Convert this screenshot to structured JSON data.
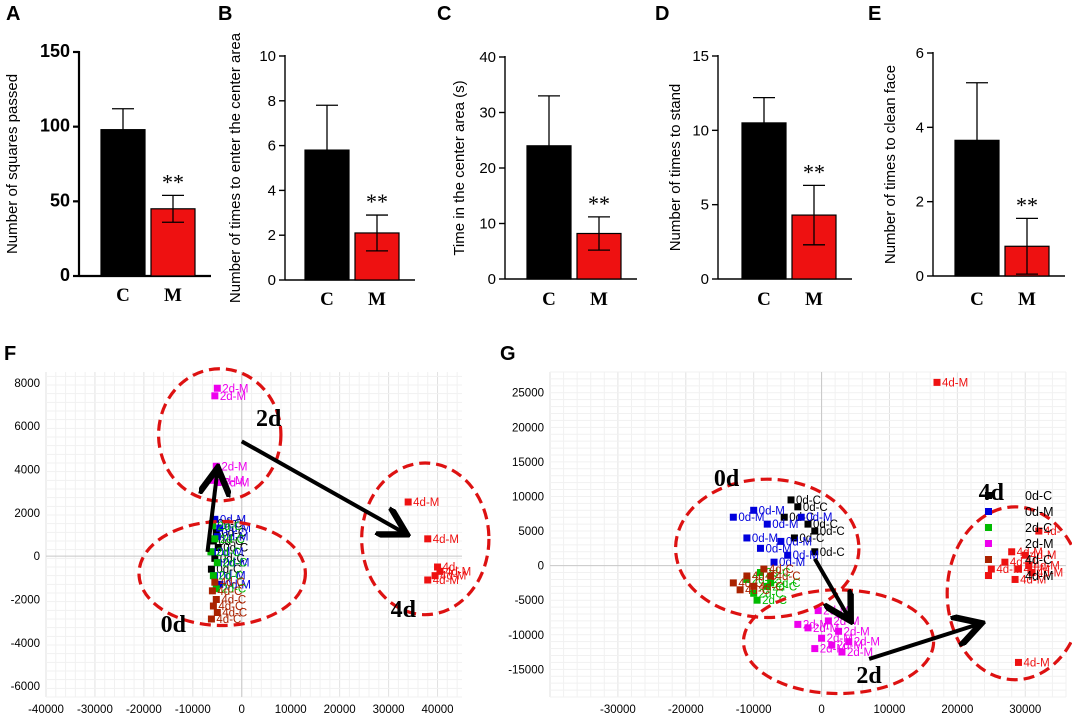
{
  "bar_panels": [
    {
      "letter": "A",
      "ylabel": "Number of squares passed",
      "ylim": [
        0,
        150
      ],
      "ticks": [
        "0",
        "50",
        "100",
        "150"
      ],
      "tick_vals": [
        0,
        50,
        100,
        150
      ],
      "bold_ticks": true,
      "categories": [
        "C",
        "M"
      ],
      "values": [
        98,
        45
      ],
      "errors": [
        14,
        9
      ],
      "sig": "**"
    },
    {
      "letter": "B",
      "ylabel": "Number of times to enter the center area",
      "ylim": [
        0,
        10
      ],
      "ticks": [
        "0",
        "2",
        "4",
        "6",
        "8",
        "10"
      ],
      "tick_vals": [
        0,
        2,
        4,
        6,
        8,
        10
      ],
      "bold_ticks": false,
      "categories": [
        "C",
        "M"
      ],
      "values": [
        5.8,
        2.1
      ],
      "errors": [
        2.0,
        0.8
      ],
      "sig": "**"
    },
    {
      "letter": "C",
      "ylabel": "Time in the center area (s)",
      "ylim": [
        0,
        40
      ],
      "ticks": [
        "0",
        "10",
        "20",
        "30",
        "40"
      ],
      "tick_vals": [
        0,
        10,
        20,
        30,
        40
      ],
      "bold_ticks": false,
      "categories": [
        "C",
        "M"
      ],
      "values": [
        24,
        8.2
      ],
      "errors": [
        9,
        3
      ],
      "sig": "**"
    },
    {
      "letter": "D",
      "ylabel": "Number of times to stand",
      "ylim": [
        0,
        15
      ],
      "ticks": [
        "0",
        "5",
        "10",
        "15"
      ],
      "tick_vals": [
        0,
        5,
        10,
        15
      ],
      "bold_ticks": false,
      "categories": [
        "C",
        "M"
      ],
      "values": [
        10.5,
        4.3
      ],
      "errors": [
        1.7,
        2.0
      ],
      "sig": "**"
    },
    {
      "letter": "E",
      "ylabel": "Number of times to clean face",
      "ylim": [
        0,
        6
      ],
      "ticks": [
        "0",
        "2",
        "4",
        "6"
      ],
      "tick_vals": [
        0,
        2,
        4,
        6
      ],
      "bold_ticks": false,
      "categories": [
        "C",
        "M"
      ],
      "values": [
        3.65,
        0.8
      ],
      "errors": [
        1.55,
        0.75
      ],
      "sig": "**"
    }
  ],
  "pca_panels": [
    {
      "letter": "F",
      "xlim": [
        -40000,
        45000
      ],
      "ylim": [
        -6500,
        8500
      ],
      "xticks": [
        -40000,
        -30000,
        -20000,
        -10000,
        0,
        10000,
        20000,
        30000,
        40000
      ],
      "yticks": [
        -6000,
        -4000,
        -2000,
        0,
        2000,
        4000,
        6000,
        8000
      ],
      "group_labels": [
        {
          "text": "2d",
          "x": 5500,
          "y": 6000
        },
        {
          "text": "0d",
          "x": -14000,
          "y": -3500
        },
        {
          "text": "4d",
          "x": 33000,
          "y": -2800
        }
      ]
    },
    {
      "letter": "G",
      "xlim": [
        -40000,
        36000
      ],
      "ylim": [
        -19000,
        28000
      ],
      "xticks": [
        -30000,
        -20000,
        -10000,
        0,
        10000,
        20000,
        30000
      ],
      "yticks": [
        -15000,
        -10000,
        -5000,
        0,
        5000,
        10000,
        15000,
        20000,
        25000
      ],
      "group_labels": [
        {
          "text": "0d",
          "x": -14000,
          "y": 11500
        },
        {
          "text": "2d",
          "x": 7000,
          "y": -17000
        },
        {
          "text": "4d",
          "x": 25000,
          "y": 9500
        }
      ],
      "legend": [
        "0d-C",
        "0d-M",
        "2d-C",
        "2d-M",
        "4d-C",
        "4d-M"
      ]
    }
  ],
  "colors": {
    "C": "#000000",
    "M": "#ee1111",
    "0d-C": "#000000",
    "0d-M": "#0000dd",
    "2d-C": "#00bb00",
    "2d-M": "#ee00ee",
    "4d-C": "#aa2200",
    "4d-M": "#ee1111",
    "dashed": "#dd1111"
  },
  "chart_data": [
    {
      "type": "bar",
      "panel": "A",
      "categories": [
        "C",
        "M"
      ],
      "values": [
        98,
        45
      ],
      "errors": [
        14,
        9
      ],
      "ylabel": "Number of squares passed",
      "ylim": [
        0,
        150
      ],
      "annotations": [
        "**"
      ]
    },
    {
      "type": "bar",
      "panel": "B",
      "categories": [
        "C",
        "M"
      ],
      "values": [
        5.8,
        2.1
      ],
      "errors": [
        2.0,
        0.8
      ],
      "ylabel": "Number of times to enter the center area",
      "ylim": [
        0,
        10
      ],
      "annotations": [
        "**"
      ]
    },
    {
      "type": "bar",
      "panel": "C",
      "categories": [
        "C",
        "M"
      ],
      "values": [
        24,
        8.2
      ],
      "errors": [
        9,
        3
      ],
      "ylabel": "Time in the center area (s)",
      "ylim": [
        0,
        40
      ],
      "annotations": [
        "**"
      ]
    },
    {
      "type": "bar",
      "panel": "D",
      "categories": [
        "C",
        "M"
      ],
      "values": [
        10.5,
        4.3
      ],
      "errors": [
        1.7,
        2.0
      ],
      "ylabel": "Number of times to stand",
      "ylim": [
        0,
        15
      ],
      "annotations": [
        "**"
      ]
    },
    {
      "type": "bar",
      "panel": "E",
      "categories": [
        "C",
        "M"
      ],
      "values": [
        3.65,
        0.8
      ],
      "errors": [
        1.55,
        0.75
      ],
      "ylabel": "Number of times to clean face",
      "ylim": [
        0,
        6
      ],
      "annotations": [
        "**"
      ]
    },
    {
      "type": "scatter",
      "panel": "F",
      "xlim": [
        -40000,
        45000
      ],
      "ylim": [
        -6500,
        8500
      ],
      "series": [
        {
          "name": "0d-C",
          "points": [
            [
              -6000,
              1500
            ],
            [
              -5200,
              1100
            ],
            [
              -5800,
              700
            ],
            [
              -4800,
              400
            ],
            [
              -5500,
              -100
            ],
            [
              -6200,
              -600
            ]
          ],
          "labels": [
            "0d-C",
            "0d-C",
            "0d-C",
            "0d-C",
            "0d-C",
            "0d-C"
          ]
        },
        {
          "name": "0d-M",
          "points": [
            [
              -5500,
              1700
            ],
            [
              -4500,
              1300
            ],
            [
              -5000,
              900
            ],
            [
              -6000,
              200
            ],
            [
              -4800,
              -300
            ],
            [
              -5600,
              -900
            ],
            [
              -4500,
              -1300
            ]
          ],
          "labels": [
            "0d-M",
            "0d-M",
            "0d-M",
            "0d-M",
            "0d-M",
            "0d-M",
            "0d-M"
          ]
        },
        {
          "name": "2d-C",
          "points": [
            [
              -6000,
              1400
            ],
            [
              -5500,
              800
            ],
            [
              -6300,
              200
            ],
            [
              -5000,
              -300
            ],
            [
              -5800,
              -900
            ],
            [
              -5200,
              -1500
            ]
          ],
          "labels": [
            "2d-C",
            "2d-C",
            "2d-C",
            "2d-C",
            "2d-C",
            "2d-C"
          ]
        },
        {
          "name": "2d-M",
          "points": [
            [
              -5000,
              7750
            ],
            [
              -5500,
              7400
            ],
            [
              -5200,
              4150
            ],
            [
              -5800,
              3500
            ],
            [
              -4800,
              3400
            ]
          ],
          "labels": [
            "2d-M",
            "2d-M",
            "2d-M",
            "2d-M",
            "2d-M"
          ]
        },
        {
          "name": "4d-C",
          "points": [
            [
              -5500,
              -1200
            ],
            [
              -6000,
              -1600
            ],
            [
              -5200,
              -2000
            ],
            [
              -5800,
              -2300
            ],
            [
              -5000,
              -2600
            ],
            [
              -6200,
              -2900
            ]
          ],
          "labels": [
            "4d-C",
            "4d-C",
            "4d-C",
            "4d-C",
            "4d-C",
            "4d-C"
          ]
        },
        {
          "name": "4d-M",
          "points": [
            [
              34000,
              2500
            ],
            [
              38000,
              800
            ],
            [
              40000,
              -500
            ],
            [
              39500,
              -900
            ],
            [
              38000,
              -1100
            ],
            [
              40500,
              -700
            ]
          ],
          "labels": [
            "4d-M",
            "4d-M",
            "4d-",
            "4d-M",
            "4d-M",
            "4d-M"
          ]
        }
      ],
      "ellipses": [
        {
          "group": "2d",
          "cx": -4500,
          "cy": 5600,
          "rx": 12500,
          "ry": 3050
        },
        {
          "group": "0d",
          "cx": -4000,
          "cy": -800,
          "rx": 17000,
          "ry": 2400
        },
        {
          "group": "4d",
          "cx": 37500,
          "cy": 800,
          "rx": 13000,
          "ry": 3500
        }
      ],
      "arrows": [
        {
          "from": [
            -7000,
            200
          ],
          "to": [
            -5000,
            3900
          ]
        },
        {
          "from": [
            0,
            5300
          ],
          "to": [
            33000,
            1100
          ]
        }
      ]
    },
    {
      "type": "scatter",
      "panel": "G",
      "xlim": [
        -40000,
        36000
      ],
      "ylim": [
        -19000,
        28000
      ],
      "series": [
        {
          "name": "0d-C",
          "points": [
            [
              -4500,
              9500
            ],
            [
              -3500,
              8500
            ],
            [
              -5500,
              7000
            ],
            [
              -2000,
              6000
            ],
            [
              -1000,
              5000
            ],
            [
              -4000,
              4000
            ],
            [
              -1000,
              2000
            ]
          ],
          "labels": [
            "0d-C",
            "0d-C",
            "0d-C",
            "0d-C",
            "0d-C",
            "0d-C",
            "0d-C"
          ]
        },
        {
          "name": "0d-M",
          "points": [
            [
              -13000,
              7000
            ],
            [
              -10000,
              8000
            ],
            [
              -8000,
              6000
            ],
            [
              -11000,
              4000
            ],
            [
              -9000,
              2500
            ],
            [
              -6000,
              3500
            ],
            [
              -3000,
              7000
            ],
            [
              -5000,
              1500
            ],
            [
              -7000,
              500
            ]
          ],
          "labels": [
            "0d-M",
            "0d-M",
            "0d-M",
            "0d-M",
            "0d-M",
            "0d-M",
            "0d-M",
            "0d-M",
            "0d-M"
          ]
        },
        {
          "name": "2d-C",
          "points": [
            [
              -9000,
              -1000
            ],
            [
              -11000,
              -2000
            ],
            [
              -8000,
              -3000
            ],
            [
              -10000,
              -4000
            ],
            [
              -7500,
              -2500
            ],
            [
              -9500,
              -5000
            ]
          ],
          "labels": [
            "2d-C",
            "2d-C",
            "2d-C",
            "2d-C",
            "2d-C",
            "2d-C"
          ]
        },
        {
          "name": "2d-M",
          "points": [
            [
              -500,
              -6500
            ],
            [
              1000,
              -8000
            ],
            [
              -2000,
              -9000
            ],
            [
              2500,
              -9500
            ],
            [
              0,
              -10500
            ],
            [
              1500,
              -11500
            ],
            [
              4000,
              -11000
            ],
            [
              -1000,
              -12000
            ],
            [
              3000,
              -12500
            ],
            [
              -3500,
              -8500
            ]
          ],
          "labels": [
            "2d-M",
            "2d-M",
            "2d-M",
            "2d-M",
            "2d-M",
            "2d-M",
            "2d-M",
            "2d-M",
            "2d-M",
            "2d-M"
          ]
        },
        {
          "name": "4d-C",
          "points": [
            [
              -13000,
              -2500
            ],
            [
              -11000,
              -1500
            ],
            [
              -12000,
              -3500
            ],
            [
              -10000,
              -3000
            ],
            [
              -8500,
              -500
            ],
            [
              -7500,
              -1500
            ]
          ],
          "labels": [
            "4d-C",
            "4d-C",
            "4d-C",
            "4d-C",
            "4d-C",
            "4d-C"
          ]
        },
        {
          "name": "4d-M",
          "points": [
            [
              17000,
              26500
            ],
            [
              32000,
              5000
            ],
            [
              28000,
              2000
            ],
            [
              30000,
              1500
            ],
            [
              27000,
              500
            ],
            [
              30500,
              0
            ],
            [
              29000,
              -500
            ],
            [
              31000,
              -1000
            ],
            [
              28500,
              -2000
            ],
            [
              25000,
              -500
            ],
            [
              29000,
              -14000
            ]
          ],
          "labels": [
            "4d-M",
            "4d-",
            "4d-M",
            "4d-M",
            "4d-M",
            "4d-M",
            "4d-M",
            "4d-M",
            "4d-M",
            "4d-M",
            "4d-M"
          ]
        }
      ],
      "ellipses": [
        {
          "group": "0d",
          "cx": -8000,
          "cy": 2500,
          "rx": 13500,
          "ry": 10000
        },
        {
          "group": "2d",
          "cx": 2500,
          "cy": -11000,
          "rx": 14000,
          "ry": 7500
        },
        {
          "group": "4d",
          "cx": 28500,
          "cy": -4000,
          "rx": 10000,
          "ry": 12500
        }
      ],
      "arrows": [
        {
          "from": [
            -1000,
            1000
          ],
          "to": [
            4000,
            -7500
          ]
        },
        {
          "from": [
            7000,
            -13500
          ],
          "to": [
            23000,
            -8500
          ]
        }
      ]
    }
  ]
}
